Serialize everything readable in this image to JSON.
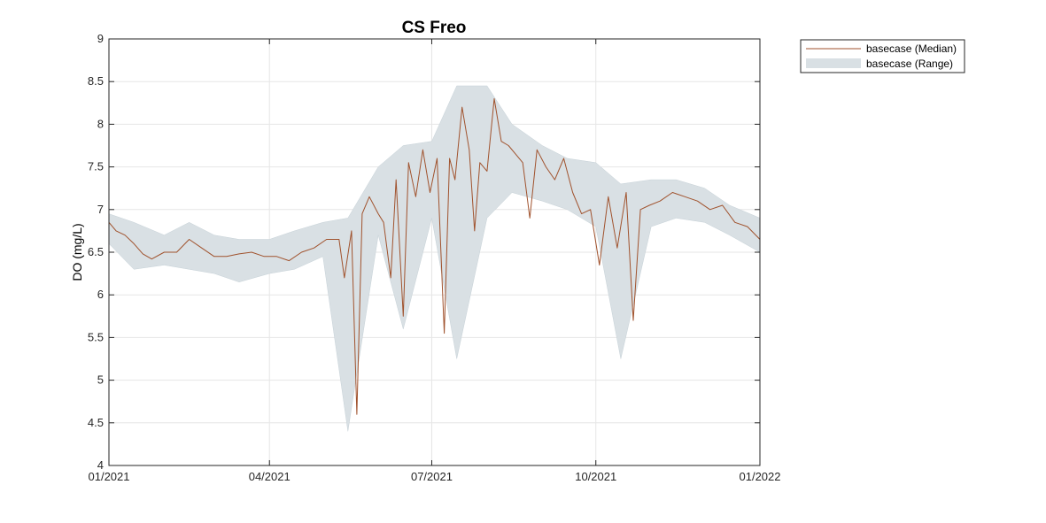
{
  "chart_data": {
    "type": "line",
    "title": "CS Freo",
    "xlabel": "",
    "ylabel": "DO (mg/L)",
    "xlim": [
      "2021-01-01",
      "2022-01-01"
    ],
    "ylim": [
      4,
      9
    ],
    "x_ticks": [
      "2021-01-01",
      "2021-04-01",
      "2021-07-01",
      "2021-10-01",
      "2022-01-01"
    ],
    "x_tick_labels": [
      "01/2021",
      "04/2021",
      "07/2021",
      "10/2021",
      "01/2022"
    ],
    "y_ticks": [
      4,
      4.5,
      5,
      5.5,
      6,
      6.5,
      7,
      7.5,
      8,
      8.5,
      9
    ],
    "y_tick_labels": [
      "4",
      "4.5",
      "5",
      "5.5",
      "6",
      "6.5",
      "7",
      "7.5",
      "8",
      "8.5",
      "9"
    ],
    "grid": true,
    "legend": {
      "placement": "outside-top-right",
      "entries": [
        "basecase (Median)",
        "basecase (Range)"
      ]
    },
    "series": [
      {
        "name": "basecase (Median)",
        "kind": "line",
        "color": "#a0522d",
        "x": [
          "2021-01-01",
          "2021-01-05",
          "2021-01-10",
          "2021-01-15",
          "2021-01-20",
          "2021-01-25",
          "2021-02-01",
          "2021-02-08",
          "2021-02-15",
          "2021-02-22",
          "2021-03-01",
          "2021-03-08",
          "2021-03-15",
          "2021-03-22",
          "2021-03-29",
          "2021-04-05",
          "2021-04-12",
          "2021-04-19",
          "2021-04-26",
          "2021-05-03",
          "2021-05-10",
          "2021-05-13",
          "2021-05-17",
          "2021-05-20",
          "2021-05-23",
          "2021-05-27",
          "2021-06-01",
          "2021-06-04",
          "2021-06-08",
          "2021-06-11",
          "2021-06-15",
          "2021-06-18",
          "2021-06-22",
          "2021-06-26",
          "2021-06-30",
          "2021-07-04",
          "2021-07-08",
          "2021-07-11",
          "2021-07-14",
          "2021-07-18",
          "2021-07-22",
          "2021-07-25",
          "2021-07-28",
          "2021-08-01",
          "2021-08-05",
          "2021-08-09",
          "2021-08-13",
          "2021-08-17",
          "2021-08-21",
          "2021-08-25",
          "2021-08-29",
          "2021-09-03",
          "2021-09-08",
          "2021-09-13",
          "2021-09-18",
          "2021-09-23",
          "2021-09-28",
          "2021-10-03",
          "2021-10-08",
          "2021-10-13",
          "2021-10-18",
          "2021-10-22",
          "2021-10-26",
          "2021-10-31",
          "2021-11-06",
          "2021-11-13",
          "2021-11-20",
          "2021-11-27",
          "2021-12-04",
          "2021-12-11",
          "2021-12-18",
          "2021-12-25",
          "2022-01-01"
        ],
        "values": [
          6.85,
          6.75,
          6.7,
          6.6,
          6.48,
          6.42,
          6.5,
          6.5,
          6.65,
          6.55,
          6.45,
          6.45,
          6.48,
          6.5,
          6.45,
          6.45,
          6.4,
          6.5,
          6.55,
          6.65,
          6.65,
          6.2,
          6.75,
          4.6,
          6.95,
          7.15,
          6.95,
          6.85,
          6.2,
          7.35,
          5.75,
          7.55,
          7.15,
          7.7,
          7.2,
          7.6,
          5.55,
          7.6,
          7.35,
          8.2,
          7.7,
          6.75,
          7.55,
          7.45,
          8.3,
          7.8,
          7.75,
          7.65,
          7.55,
          6.9,
          7.7,
          7.5,
          7.35,
          7.6,
          7.2,
          6.95,
          7.0,
          6.35,
          7.15,
          6.55,
          7.2,
          5.7,
          7.0,
          7.05,
          7.1,
          7.2,
          7.15,
          7.1,
          7.0,
          7.05,
          6.85,
          6.8,
          6.65
        ]
      },
      {
        "name": "basecase (Range)",
        "kind": "band",
        "color": "#d9e0e4",
        "x": [
          "2021-01-01",
          "2021-01-15",
          "2021-02-01",
          "2021-02-15",
          "2021-03-01",
          "2021-03-15",
          "2021-04-01",
          "2021-04-15",
          "2021-05-01",
          "2021-05-15",
          "2021-06-01",
          "2021-06-15",
          "2021-07-01",
          "2021-07-15",
          "2021-08-01",
          "2021-08-15",
          "2021-09-01",
          "2021-09-15",
          "2021-10-01",
          "2021-10-15",
          "2021-11-01",
          "2021-11-15",
          "2021-12-01",
          "2021-12-15",
          "2022-01-01"
        ],
        "low": [
          6.6,
          6.3,
          6.35,
          6.3,
          6.25,
          6.15,
          6.25,
          6.3,
          6.45,
          4.4,
          6.7,
          5.6,
          6.9,
          5.25,
          6.9,
          7.2,
          7.1,
          7.0,
          6.8,
          5.25,
          6.8,
          6.9,
          6.85,
          6.7,
          6.5
        ],
        "high": [
          6.95,
          6.85,
          6.7,
          6.85,
          6.7,
          6.65,
          6.65,
          6.75,
          6.85,
          6.9,
          7.5,
          7.75,
          7.8,
          8.45,
          8.45,
          8.0,
          7.75,
          7.6,
          7.55,
          7.3,
          7.35,
          7.35,
          7.25,
          7.05,
          6.9
        ]
      }
    ]
  }
}
